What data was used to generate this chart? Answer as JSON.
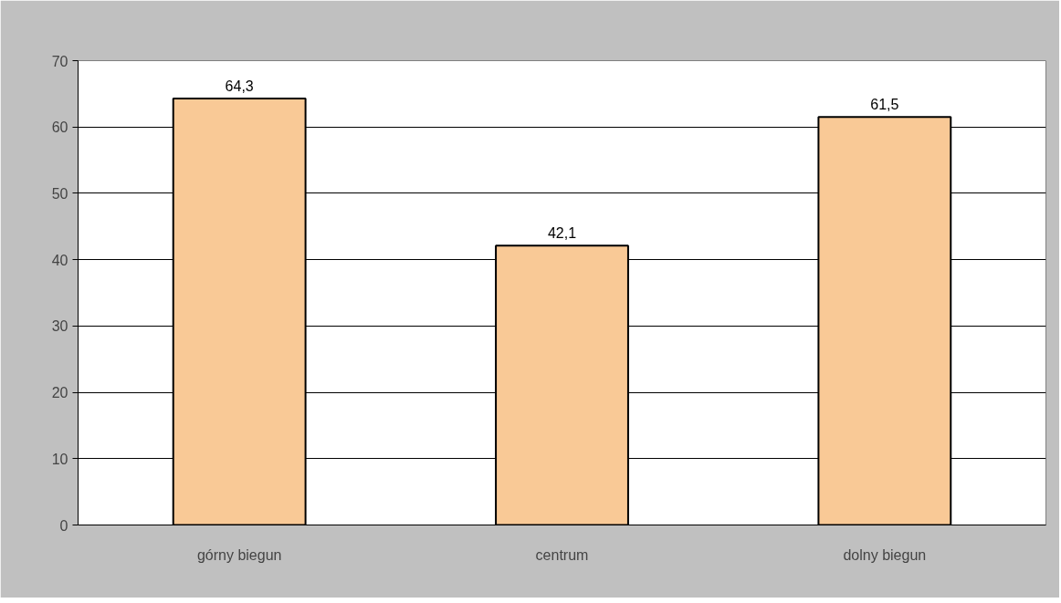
{
  "chart_data": {
    "type": "bar",
    "categories": [
      "górny biegun",
      "centrum",
      "dolny biegun"
    ],
    "values": [
      64.3,
      42.1,
      61.5
    ],
    "value_labels": [
      "64,3",
      "42,1",
      "61,5"
    ],
    "color": "#f9c996",
    "ylim": [
      0,
      70
    ],
    "yticks": [
      0,
      10,
      20,
      30,
      40,
      50,
      60,
      70
    ],
    "grid": "y"
  }
}
